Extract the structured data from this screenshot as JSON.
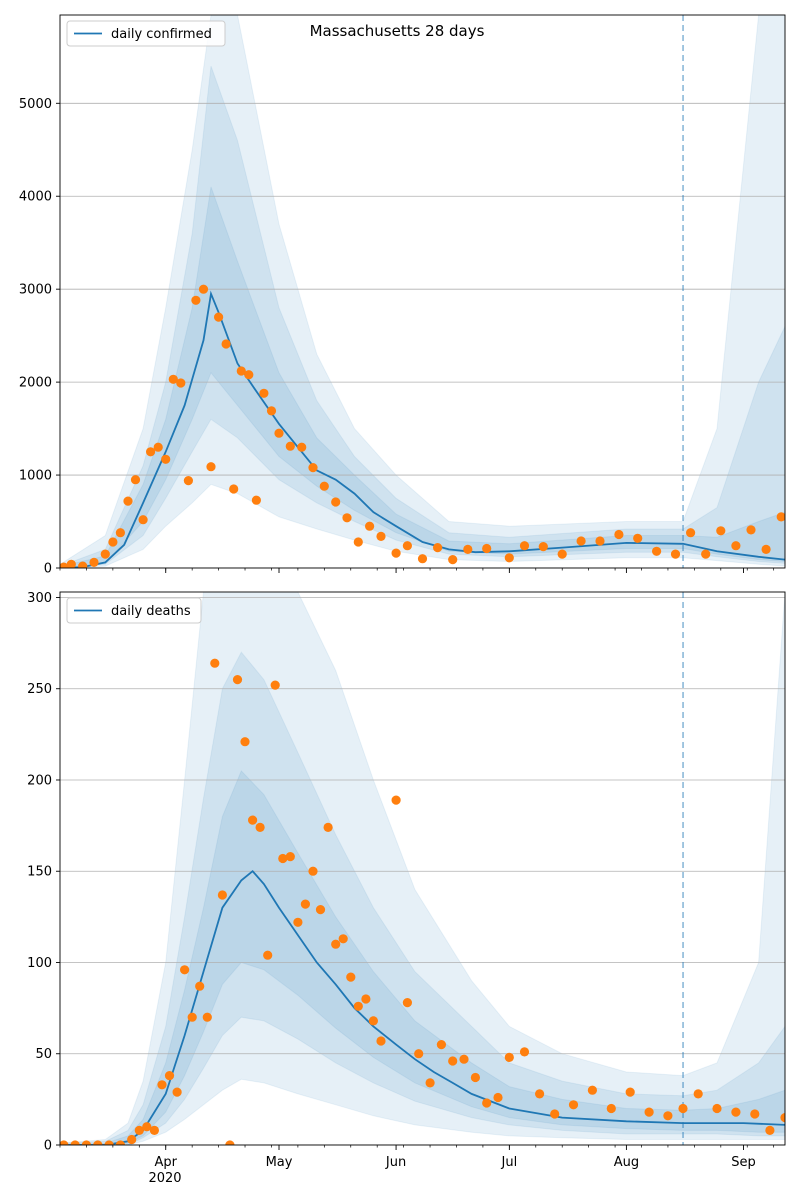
{
  "title": "Massachusetts 28 days",
  "x_axis": {
    "tick_labels": [
      "Apr",
      "May",
      "Jun",
      "Jul",
      "Aug",
      "Sep"
    ],
    "tick_dates": [
      "2020-04-01",
      "2020-05-01",
      "2020-06-01",
      "2020-07-01",
      "2020-08-01",
      "2020-09-01"
    ],
    "year_label": "2020",
    "range": [
      "2020-03-04",
      "2020-09-12"
    ]
  },
  "forecast_date": "2020-08-16",
  "colors": {
    "line": "#1f77b4",
    "points": "#ff7f0e",
    "band": "#1f77b4",
    "grid": "#b0b0b0",
    "forecast_line": "#1f77b4"
  },
  "chart_data": [
    {
      "type": "line",
      "legend": "daily confirmed",
      "ylim": [
        0,
        5950
      ],
      "yticks": [
        0,
        1000,
        2000,
        3000,
        4000,
        5000
      ],
      "grid": "horizontal",
      "legend_position": "top-left",
      "model_line": {
        "x": [
          "2020-03-04",
          "2020-03-10",
          "2020-03-16",
          "2020-03-21",
          "2020-03-26",
          "2020-04-01",
          "2020-04-06",
          "2020-04-11",
          "2020-04-13",
          "2020-04-15",
          "2020-04-20",
          "2020-04-25",
          "2020-05-01",
          "2020-05-06",
          "2020-05-11",
          "2020-05-16",
          "2020-05-21",
          "2020-05-26",
          "2020-06-01",
          "2020-06-08",
          "2020-06-15",
          "2020-06-22",
          "2020-07-01",
          "2020-07-15",
          "2020-08-01",
          "2020-08-16",
          "2020-08-25",
          "2020-09-05",
          "2020-09-12"
        ],
        "y": [
          0,
          10,
          60,
          250,
          700,
          1250,
          1750,
          2450,
          2950,
          2750,
          2200,
          1900,
          1550,
          1300,
          1050,
          950,
          800,
          600,
          450,
          280,
          200,
          170,
          180,
          220,
          270,
          260,
          180,
          120,
          90
        ]
      },
      "bands": [
        {
          "level": "outer",
          "x": [
            "2020-03-04",
            "2020-03-16",
            "2020-03-26",
            "2020-04-01",
            "2020-04-08",
            "2020-04-13",
            "2020-04-20",
            "2020-05-01",
            "2020-05-11",
            "2020-05-21",
            "2020-06-01",
            "2020-06-15",
            "2020-07-01",
            "2020-08-01",
            "2020-08-16",
            "2020-08-25",
            "2020-09-05",
            "2020-09-12"
          ],
          "lower": [
            0,
            20,
            200,
            450,
            700,
            900,
            800,
            550,
            420,
            300,
            180,
            90,
            70,
            110,
            110,
            80,
            40,
            20
          ],
          "upper": [
            40,
            350,
            1500,
            2800,
            4500,
            5950,
            5950,
            3700,
            2300,
            1500,
            1000,
            500,
            450,
            500,
            500,
            1500,
            5950,
            5950
          ]
        },
        {
          "level": "middle",
          "x": [
            "2020-03-04",
            "2020-03-16",
            "2020-03-26",
            "2020-04-01",
            "2020-04-08",
            "2020-04-13",
            "2020-04-20",
            "2020-05-01",
            "2020-05-11",
            "2020-05-21",
            "2020-06-01",
            "2020-06-15",
            "2020-07-01",
            "2020-08-01",
            "2020-08-16",
            "2020-08-25",
            "2020-09-05",
            "2020-09-12"
          ],
          "lower": [
            0,
            40,
            350,
            750,
            1250,
            1600,
            1400,
            950,
            700,
            500,
            300,
            150,
            120,
            170,
            170,
            120,
            70,
            50
          ],
          "upper": [
            20,
            200,
            1100,
            2000,
            3600,
            5400,
            4600,
            2800,
            1800,
            1200,
            750,
            380,
            330,
            420,
            420,
            650,
            2000,
            2600
          ]
        },
        {
          "level": "inner",
          "x": [
            "2020-03-04",
            "2020-03-16",
            "2020-03-26",
            "2020-04-01",
            "2020-04-08",
            "2020-04-13",
            "2020-04-20",
            "2020-05-01",
            "2020-05-11",
            "2020-05-21",
            "2020-06-01",
            "2020-06-15",
            "2020-07-01",
            "2020-08-01",
            "2020-08-16",
            "2020-08-25",
            "2020-09-05",
            "2020-09-12"
          ],
          "lower": [
            0,
            50,
            500,
            950,
            1600,
            2100,
            1750,
            1200,
            880,
            620,
            380,
            180,
            150,
            210,
            210,
            150,
            90,
            70
          ],
          "upper": [
            15,
            130,
            900,
            1600,
            2800,
            4100,
            3300,
            2100,
            1400,
            1000,
            580,
            290,
            260,
            350,
            350,
            330,
            500,
            600
          ]
        }
      ],
      "points": {
        "x": [
          "2020-03-05",
          "2020-03-07",
          "2020-03-10",
          "2020-03-13",
          "2020-03-16",
          "2020-03-18",
          "2020-03-20",
          "2020-03-22",
          "2020-03-24",
          "2020-03-26",
          "2020-03-28",
          "2020-03-30",
          "2020-04-01",
          "2020-04-03",
          "2020-04-05",
          "2020-04-07",
          "2020-04-09",
          "2020-04-11",
          "2020-04-13",
          "2020-04-15",
          "2020-04-17",
          "2020-04-19",
          "2020-04-21",
          "2020-04-23",
          "2020-04-25",
          "2020-04-27",
          "2020-04-29",
          "2020-05-01",
          "2020-05-04",
          "2020-05-07",
          "2020-05-10",
          "2020-05-13",
          "2020-05-16",
          "2020-05-19",
          "2020-05-22",
          "2020-05-25",
          "2020-05-28",
          "2020-06-01",
          "2020-06-04",
          "2020-06-08",
          "2020-06-12",
          "2020-06-16",
          "2020-06-20",
          "2020-06-25",
          "2020-07-01",
          "2020-07-05",
          "2020-07-10",
          "2020-07-15",
          "2020-07-20",
          "2020-07-25",
          "2020-07-30",
          "2020-08-04",
          "2020-08-09",
          "2020-08-14",
          "2020-08-18",
          "2020-08-22",
          "2020-08-26",
          "2020-08-30",
          "2020-09-03",
          "2020-09-07",
          "2020-09-11"
        ],
        "y": [
          10,
          40,
          20,
          60,
          150,
          280,
          380,
          720,
          950,
          520,
          1250,
          1300,
          1170,
          2030,
          1990,
          940,
          2880,
          3000,
          1090,
          2700,
          2410,
          850,
          2120,
          2080,
          730,
          1880,
          1690,
          1450,
          1310,
          1300,
          1080,
          880,
          710,
          540,
          280,
          450,
          340,
          160,
          240,
          100,
          220,
          90,
          200,
          210,
          110,
          240,
          230,
          150,
          290,
          290,
          360,
          320,
          180,
          150,
          380,
          150,
          400,
          240,
          410,
          200,
          550
        ]
      }
    },
    {
      "type": "line",
      "legend": "daily deaths",
      "ylim": [
        0,
        303
      ],
      "yticks": [
        0,
        50,
        100,
        150,
        200,
        250,
        300
      ],
      "grid": "horizontal",
      "legend_position": "top-left",
      "model_line": {
        "x": [
          "2020-03-04",
          "2020-03-16",
          "2020-03-22",
          "2020-03-26",
          "2020-04-01",
          "2020-04-06",
          "2020-04-11",
          "2020-04-16",
          "2020-04-21",
          "2020-04-24",
          "2020-04-27",
          "2020-05-01",
          "2020-05-06",
          "2020-05-11",
          "2020-05-16",
          "2020-05-21",
          "2020-05-26",
          "2020-06-01",
          "2020-06-06",
          "2020-06-11",
          "2020-06-16",
          "2020-06-21",
          "2020-07-01",
          "2020-07-15",
          "2020-08-01",
          "2020-08-16",
          "2020-09-01",
          "2020-09-12"
        ],
        "y": [
          0,
          0,
          2,
          8,
          28,
          60,
          95,
          130,
          145,
          150,
          143,
          130,
          115,
          100,
          88,
          75,
          65,
          55,
          47,
          40,
          34,
          28,
          20,
          15,
          13,
          12,
          12,
          11
        ]
      },
      "bands": [
        {
          "level": "outer",
          "x": [
            "2020-03-04",
            "2020-03-16",
            "2020-03-22",
            "2020-03-26",
            "2020-04-01",
            "2020-04-06",
            "2020-04-11",
            "2020-04-16",
            "2020-04-21",
            "2020-04-27",
            "2020-05-06",
            "2020-05-16",
            "2020-05-26",
            "2020-06-06",
            "2020-06-21",
            "2020-07-01",
            "2020-07-15",
            "2020-08-01",
            "2020-08-16",
            "2020-08-25",
            "2020-09-05",
            "2020-09-12"
          ],
          "lower": [
            0,
            0,
            0,
            2,
            7,
            14,
            22,
            30,
            36,
            34,
            28,
            22,
            16,
            11,
            7,
            5,
            4,
            3,
            3,
            3,
            3,
            3
          ],
          "upper": [
            1,
            3,
            12,
            35,
            100,
            200,
            303,
            303,
            303,
            303,
            303,
            260,
            200,
            140,
            90,
            65,
            50,
            40,
            38,
            45,
            100,
            303
          ]
        },
        {
          "level": "middle",
          "x": [
            "2020-03-04",
            "2020-03-16",
            "2020-03-22",
            "2020-03-26",
            "2020-04-01",
            "2020-04-06",
            "2020-04-11",
            "2020-04-16",
            "2020-04-21",
            "2020-04-27",
            "2020-05-06",
            "2020-05-16",
            "2020-05-26",
            "2020-06-06",
            "2020-06-21",
            "2020-07-01",
            "2020-07-15",
            "2020-08-01",
            "2020-08-16",
            "2020-08-25",
            "2020-09-05",
            "2020-09-12"
          ],
          "lower": [
            0,
            0,
            0,
            4,
            12,
            25,
            42,
            60,
            70,
            68,
            58,
            45,
            34,
            24,
            15,
            11,
            8,
            6,
            6,
            6,
            5,
            5
          ],
          "upper": [
            1,
            2,
            8,
            22,
            65,
            125,
            190,
            250,
            270,
            255,
            215,
            170,
            130,
            95,
            65,
            45,
            35,
            28,
            27,
            30,
            45,
            65
          ]
        },
        {
          "level": "inner",
          "x": [
            "2020-03-04",
            "2020-03-16",
            "2020-03-22",
            "2020-03-26",
            "2020-04-01",
            "2020-04-06",
            "2020-04-11",
            "2020-04-16",
            "2020-04-21",
            "2020-04-27",
            "2020-05-06",
            "2020-05-16",
            "2020-05-26",
            "2020-06-06",
            "2020-06-21",
            "2020-07-01",
            "2020-07-15",
            "2020-08-01",
            "2020-08-16",
            "2020-08-25",
            "2020-09-05",
            "2020-09-12"
          ],
          "lower": [
            0,
            0,
            1,
            5,
            18,
            38,
            62,
            88,
            100,
            96,
            82,
            64,
            48,
            34,
            21,
            15,
            11,
            9,
            8,
            8,
            7,
            7
          ],
          "upper": [
            0,
            1,
            5,
            14,
            45,
            85,
            130,
            180,
            205,
            192,
            160,
            125,
            95,
            68,
            45,
            32,
            25,
            20,
            19,
            20,
            25,
            30
          ]
        }
      ],
      "points": {
        "x": [
          "2020-03-05",
          "2020-03-08",
          "2020-03-11",
          "2020-03-14",
          "2020-03-17",
          "2020-03-20",
          "2020-03-23",
          "2020-03-25",
          "2020-03-27",
          "2020-03-29",
          "2020-03-31",
          "2020-04-02",
          "2020-04-04",
          "2020-04-06",
          "2020-04-08",
          "2020-04-10",
          "2020-04-12",
          "2020-04-14",
          "2020-04-16",
          "2020-04-18",
          "2020-04-20",
          "2020-04-22",
          "2020-04-24",
          "2020-04-26",
          "2020-04-28",
          "2020-04-30",
          "2020-05-02",
          "2020-05-04",
          "2020-05-06",
          "2020-05-08",
          "2020-05-10",
          "2020-05-12",
          "2020-05-14",
          "2020-05-16",
          "2020-05-18",
          "2020-05-20",
          "2020-05-22",
          "2020-05-24",
          "2020-05-26",
          "2020-05-28",
          "2020-06-01",
          "2020-06-04",
          "2020-06-07",
          "2020-06-10",
          "2020-06-13",
          "2020-06-16",
          "2020-06-19",
          "2020-06-22",
          "2020-06-25",
          "2020-06-28",
          "2020-07-01",
          "2020-07-05",
          "2020-07-09",
          "2020-07-13",
          "2020-07-18",
          "2020-07-23",
          "2020-07-28",
          "2020-08-02",
          "2020-08-07",
          "2020-08-12",
          "2020-08-16",
          "2020-08-20",
          "2020-08-25",
          "2020-08-30",
          "2020-09-04",
          "2020-09-08",
          "2020-09-12"
        ],
        "y": [
          0,
          0,
          0,
          0,
          0,
          0,
          3,
          8,
          10,
          8,
          33,
          38,
          29,
          96,
          70,
          87,
          70,
          264,
          137,
          0,
          255,
          221,
          178,
          174,
          104,
          252,
          157,
          158,
          122,
          132,
          150,
          129,
          174,
          110,
          113,
          92,
          76,
          80,
          68,
          57,
          189,
          78,
          50,
          34,
          55,
          46,
          47,
          37,
          23,
          26,
          48,
          51,
          28,
          17,
          22,
          30,
          20,
          29,
          18,
          16,
          20,
          28,
          20,
          18,
          17,
          8,
          15
        ]
      }
    }
  ]
}
